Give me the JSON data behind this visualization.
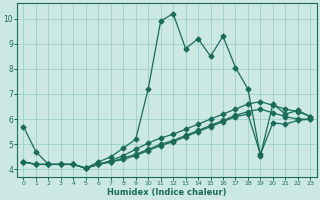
{
  "xlabel": "Humidex (Indice chaleur)",
  "bg_color": "#cce8e2",
  "grid_color": "#9ecfca",
  "line_color": "#1a6b5a",
  "xlim": [
    -0.5,
    23.5
  ],
  "ylim": [
    3.7,
    10.6
  ],
  "xticks": [
    0,
    1,
    2,
    3,
    4,
    5,
    6,
    7,
    8,
    9,
    10,
    11,
    12,
    13,
    14,
    15,
    16,
    17,
    18,
    19,
    20,
    21,
    22,
    23
  ],
  "yticks": [
    4,
    5,
    6,
    7,
    8,
    9,
    10
  ],
  "line1_x": [
    0,
    1,
    2,
    3,
    4,
    5,
    6,
    7,
    8,
    9,
    10,
    11,
    12,
    13,
    14,
    15,
    16,
    17,
    18,
    19,
    20,
    21,
    22,
    23
  ],
  "line1_y": [
    5.7,
    4.7,
    4.2,
    4.2,
    4.2,
    4.05,
    4.3,
    4.5,
    4.85,
    5.2,
    7.2,
    9.9,
    10.2,
    8.8,
    9.2,
    8.5,
    9.3,
    8.05,
    7.2,
    4.55,
    6.6,
    6.2,
    6.35,
    6.1
  ],
  "line2_x": [
    0,
    1,
    2,
    3,
    4,
    5,
    6,
    7,
    8,
    9,
    10,
    11,
    12,
    13,
    14,
    15,
    16,
    17,
    18,
    19,
    20,
    21,
    22,
    23
  ],
  "line2_y": [
    4.3,
    4.2,
    4.2,
    4.2,
    4.2,
    4.05,
    4.2,
    4.35,
    4.55,
    4.8,
    5.05,
    5.25,
    5.4,
    5.6,
    5.8,
    6.0,
    6.2,
    6.4,
    6.6,
    6.7,
    6.55,
    6.4,
    6.3,
    6.1
  ],
  "line3_x": [
    0,
    1,
    2,
    3,
    4,
    5,
    6,
    7,
    8,
    9,
    10,
    11,
    12,
    13,
    14,
    15,
    16,
    17,
    18,
    19,
    20,
    21,
    22,
    23
  ],
  "line3_y": [
    4.3,
    4.2,
    4.2,
    4.2,
    4.2,
    4.05,
    4.2,
    4.3,
    4.45,
    4.6,
    4.8,
    5.0,
    5.15,
    5.35,
    5.55,
    5.75,
    5.95,
    6.15,
    6.3,
    6.4,
    6.25,
    6.1,
    6.0,
    6.0
  ],
  "line4_x": [
    0,
    1,
    2,
    3,
    4,
    5,
    6,
    7,
    8,
    9,
    10,
    11,
    12,
    13,
    14,
    15,
    16,
    17,
    18,
    19,
    20,
    21,
    22,
    23
  ],
  "line4_y": [
    4.3,
    4.2,
    4.2,
    4.2,
    4.2,
    4.05,
    4.2,
    4.3,
    4.4,
    4.55,
    4.75,
    4.95,
    5.1,
    5.3,
    5.5,
    5.7,
    5.9,
    6.1,
    6.2,
    4.6,
    5.85,
    5.8,
    5.95,
    6.0
  ]
}
